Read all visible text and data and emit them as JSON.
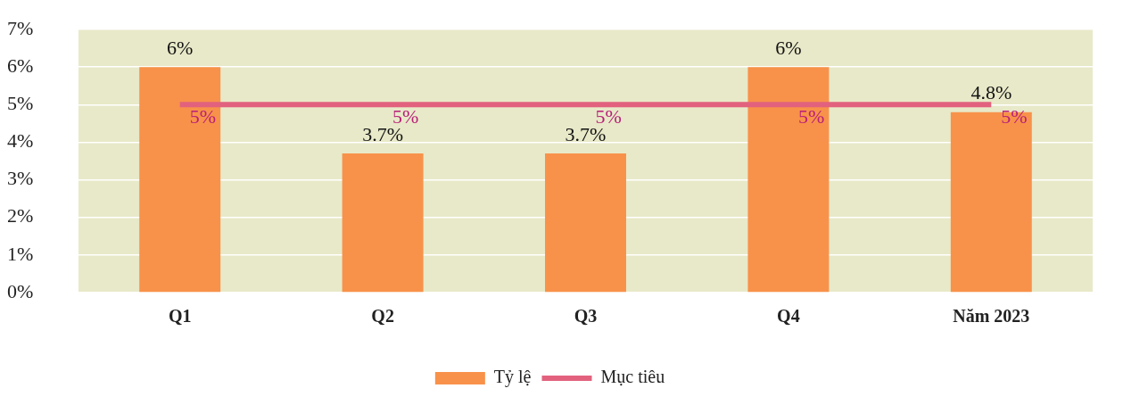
{
  "chart_data": {
    "type": "bar",
    "categories": [
      "Q1",
      "Q2",
      "Q3",
      "Q4",
      "Năm 2023"
    ],
    "series": [
      {
        "name": "Tỷ lệ",
        "color": "#f8924a",
        "values": [
          6,
          3.7,
          3.7,
          6,
          4.8
        ],
        "value_labels": [
          "6%",
          "3.7%",
          "3.7%",
          "6%",
          "4.8%"
        ]
      },
      {
        "name": "Mục tiêu",
        "type": "line",
        "color": "#e2627e",
        "values": [
          5,
          5,
          5,
          5,
          5
        ],
        "value_labels": [
          "5%",
          "5%",
          "5%",
          "5%",
          "5%"
        ]
      }
    ],
    "ylim": [
      0,
      7
    ],
    "yticks": [
      {
        "value": 0,
        "label": "0%"
      },
      {
        "value": 1,
        "label": "1%"
      },
      {
        "value": 2,
        "label": "2%"
      },
      {
        "value": 3,
        "label": "3%"
      },
      {
        "value": 4,
        "label": "4%"
      },
      {
        "value": 5,
        "label": "5%"
      },
      {
        "value": 6,
        "label": "6%"
      },
      {
        "value": 7,
        "label": "7%"
      }
    ],
    "grid": "y",
    "legend": "bottom"
  }
}
